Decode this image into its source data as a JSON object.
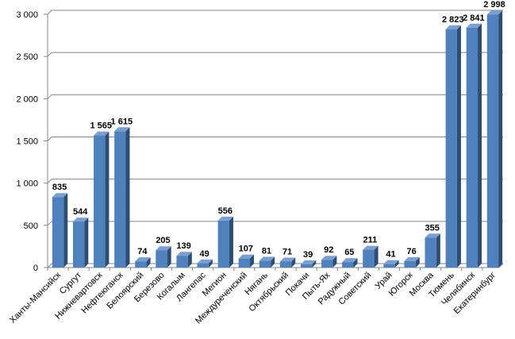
{
  "chart_data": {
    "type": "bar",
    "categories": [
      "Ханты-Мансийск",
      "Сургут",
      "Нижневартовск",
      "Нефтеюганск",
      "Белоярский",
      "Березово",
      "Когалым",
      "Лангепас",
      "Мегион",
      "Междуреченский",
      "Нягань",
      "Октябрьский",
      "Покачи",
      "Пыть-Ях",
      "Радужный",
      "Советский",
      "Урай",
      "Югорск",
      "Москва",
      "Тюмень",
      "Челябинск",
      "Екатеринбург"
    ],
    "values": [
      835,
      544,
      1565,
      1615,
      74,
      205,
      139,
      49,
      556,
      107,
      81,
      71,
      39,
      92,
      65,
      211,
      41,
      76,
      355,
      2823,
      2841,
      2998
    ],
    "value_labels": [
      "835",
      "544",
      "1 565",
      "1 615",
      "74",
      "205",
      "139",
      "49",
      "556",
      "107",
      "81",
      "71",
      "39",
      "92",
      "65",
      "211",
      "41",
      "76",
      "355",
      "2 823",
      "2 841",
      "2 998"
    ],
    "color": "#4f81bd",
    "ylim": [
      0,
      3000
    ],
    "yticks": [
      0,
      500,
      {
        "value": 1000,
        "label": "1 000"
      },
      {
        "value": 1500,
        "label": "1 500"
      },
      {
        "value": 2000,
        "label": "2 000"
      },
      {
        "value": 2500,
        "label": "2 500"
      },
      {
        "value": 3000,
        "label": "3 000"
      }
    ],
    "grid": true
  }
}
